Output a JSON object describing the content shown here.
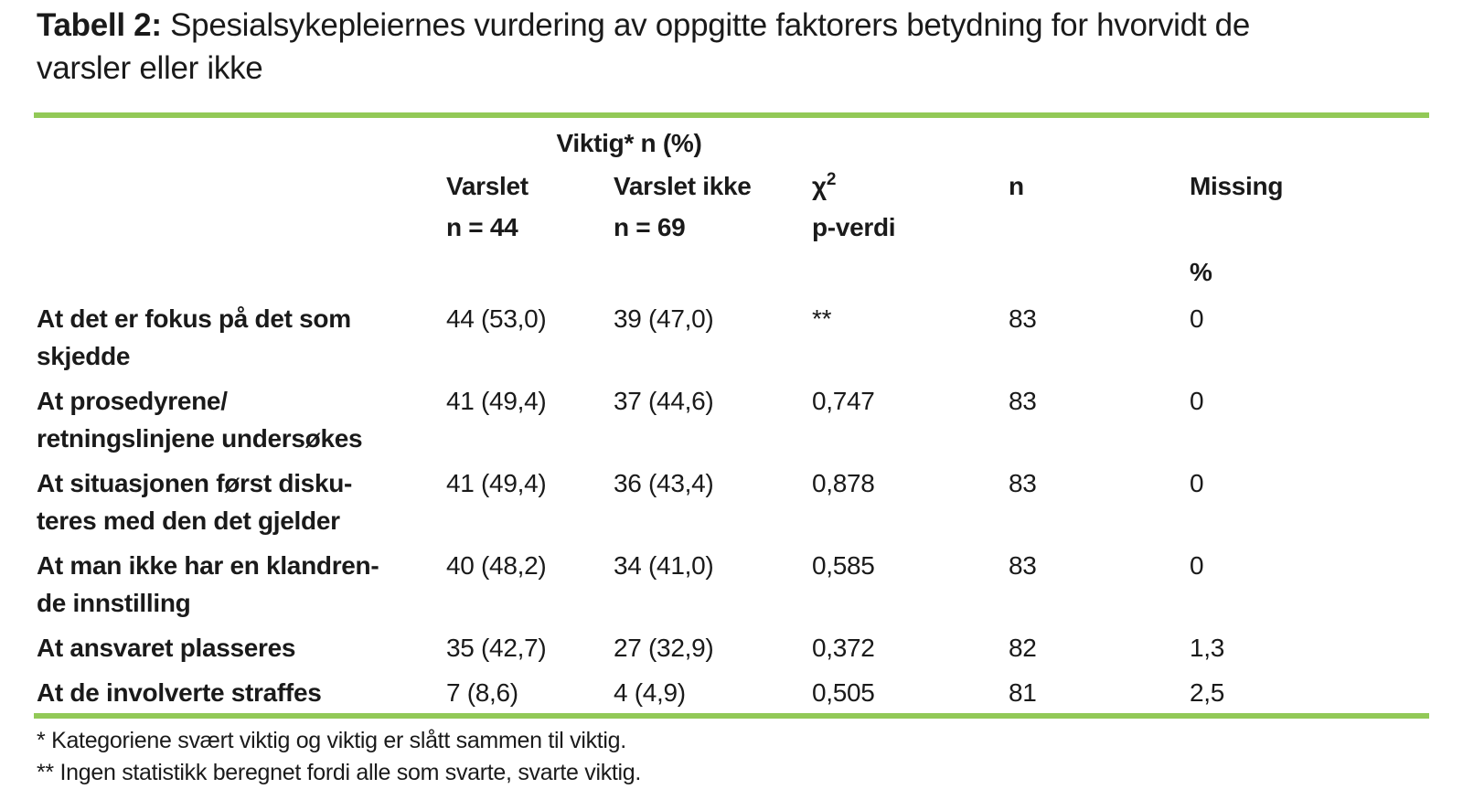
{
  "title": {
    "label": "Tabell 2:",
    "rest_line1": " Spesialsykepleiernes vurdering av oppgitte faktorers betydning for hvorvidt de",
    "line2": "varsler eller ikke"
  },
  "colors": {
    "rule_green": "#92C957",
    "text": "#1a1a1a"
  },
  "table": {
    "span_header": "Viktig* n (%)",
    "columns": [
      {
        "line1": "Varslet",
        "line2": "n = 44"
      },
      {
        "line1": "Varslet ikke",
        "line2": "n = 69"
      },
      {
        "line1_base": "χ",
        "line1_sup": "2",
        "line2": "p-verdi"
      },
      {
        "line1": "n",
        "line2": ""
      },
      {
        "line1": "Missing",
        "line2": "%"
      }
    ],
    "rows": [
      {
        "label_line1": "At det er fokus på det som",
        "label_line2": "skjedde",
        "varslet": "44 (53,0)",
        "varslet_ikke": "39 (47,0)",
        "p_verdi": "**",
        "n": "83",
        "missing_pct": "0"
      },
      {
        "label_line1": "At prosedyrene/",
        "label_line2": "retningslinjene undersøkes",
        "varslet": "41 (49,4)",
        "varslet_ikke": "37 (44,6)",
        "p_verdi": "0,747",
        "n": "83",
        "missing_pct": "0"
      },
      {
        "label_line1": "At situasjonen først disku-",
        "label_line2": "teres med den det gjelder",
        "varslet": "41 (49,4)",
        "varslet_ikke": "36 (43,4)",
        "p_verdi": "0,878",
        "n": "83",
        "missing_pct": "0"
      },
      {
        "label_line1": "At man ikke har en klandren-",
        "label_line2": "de innstilling",
        "varslet": "40 (48,2)",
        "varslet_ikke": "34 (41,0)",
        "p_verdi": "0,585",
        "n": "83",
        "missing_pct": "0"
      },
      {
        "label_line1": "At ansvaret plasseres",
        "label_line2": "",
        "varslet": "35 (42,7)",
        "varslet_ikke": "27 (32,9)",
        "p_verdi": "0,372",
        "n": "82",
        "missing_pct": "1,3"
      },
      {
        "label_line1": "At de involverte straffes",
        "label_line2": "",
        "varslet": "7 (8,6)",
        "varslet_ikke": "4 (4,9)",
        "p_verdi": "0,505",
        "n": "81",
        "missing_pct": "2,5"
      }
    ],
    "footnotes": [
      "* Kategoriene svært viktig og viktig er slått sammen til viktig.",
      "** Ingen statistikk beregnet fordi alle som svarte, svarte viktig."
    ]
  }
}
